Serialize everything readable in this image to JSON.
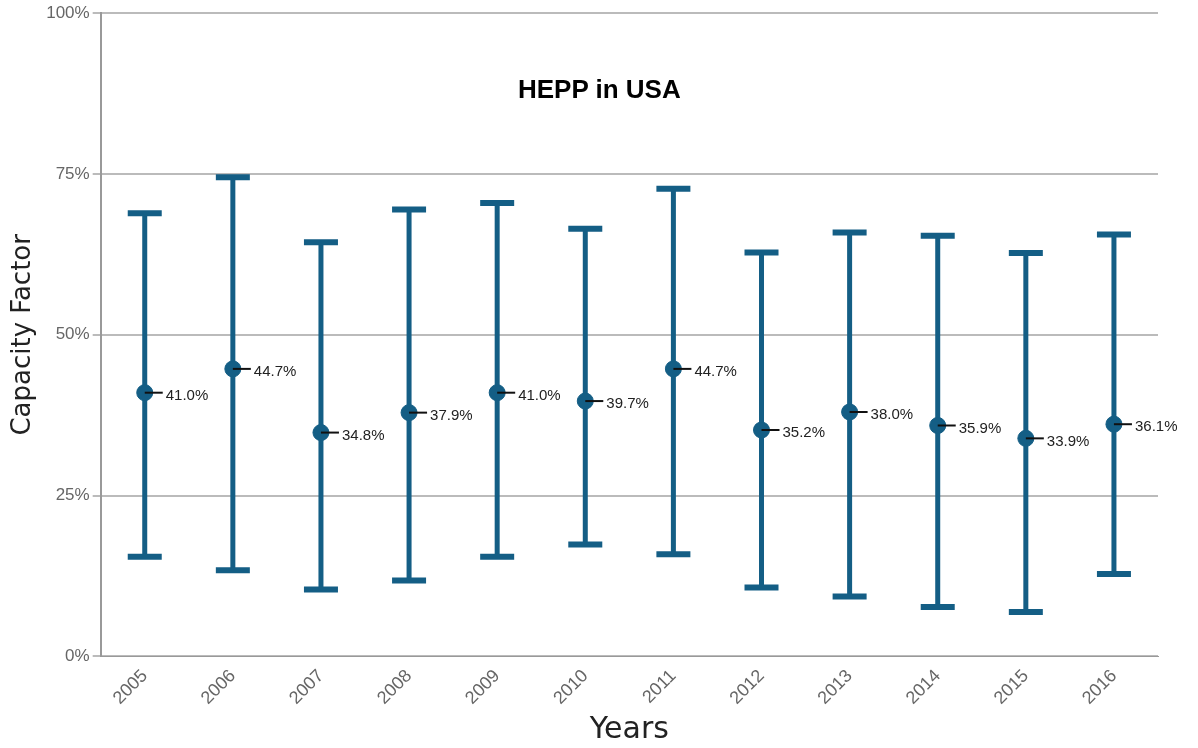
{
  "chart_data": {
    "type": "scatter",
    "title": "HEPP in USA",
    "xlabel": "Years",
    "ylabel": "Capacity Factor",
    "categories": [
      "2005",
      "2006",
      "2007",
      "2008",
      "2009",
      "2010",
      "2011",
      "2012",
      "2013",
      "2014",
      "2015",
      "2016"
    ],
    "series": [
      {
        "color": "#145e85",
        "values": [
          41.0,
          44.7,
          34.8,
          37.9,
          41.0,
          39.7,
          44.7,
          35.2,
          38.0,
          35.9,
          33.9,
          36.1
        ],
        "errors": [
          [
            15.5,
            68.9
          ],
          [
            13.4,
            74.5
          ],
          [
            10.4,
            64.4
          ],
          [
            11.8,
            69.5
          ],
          [
            15.5,
            70.5
          ],
          [
            17.4,
            66.5
          ],
          [
            15.9,
            72.7
          ],
          [
            10.7,
            62.8
          ],
          [
            9.3,
            65.9
          ],
          [
            7.7,
            65.4
          ],
          [
            6.9,
            62.7
          ],
          [
            12.8,
            65.6
          ]
        ],
        "value_labels": [
          "41.0%",
          "44.7%",
          "34.8%",
          "37.9%",
          "41.0%",
          "39.7%",
          "44.7%",
          "35.2%",
          "38.0%",
          "35.9%",
          "33.9%",
          "36.1%"
        ]
      }
    ],
    "ylim": [
      0,
      100
    ],
    "yticks": [
      {
        "value": 0,
        "label": "0%"
      },
      {
        "value": 25,
        "label": "25%"
      },
      {
        "value": 50,
        "label": "50%"
      },
      {
        "value": 75,
        "label": "75%"
      },
      {
        "value": 100,
        "label": "100%"
      }
    ],
    "grid": "y",
    "legend": false,
    "marker": "circle"
  }
}
